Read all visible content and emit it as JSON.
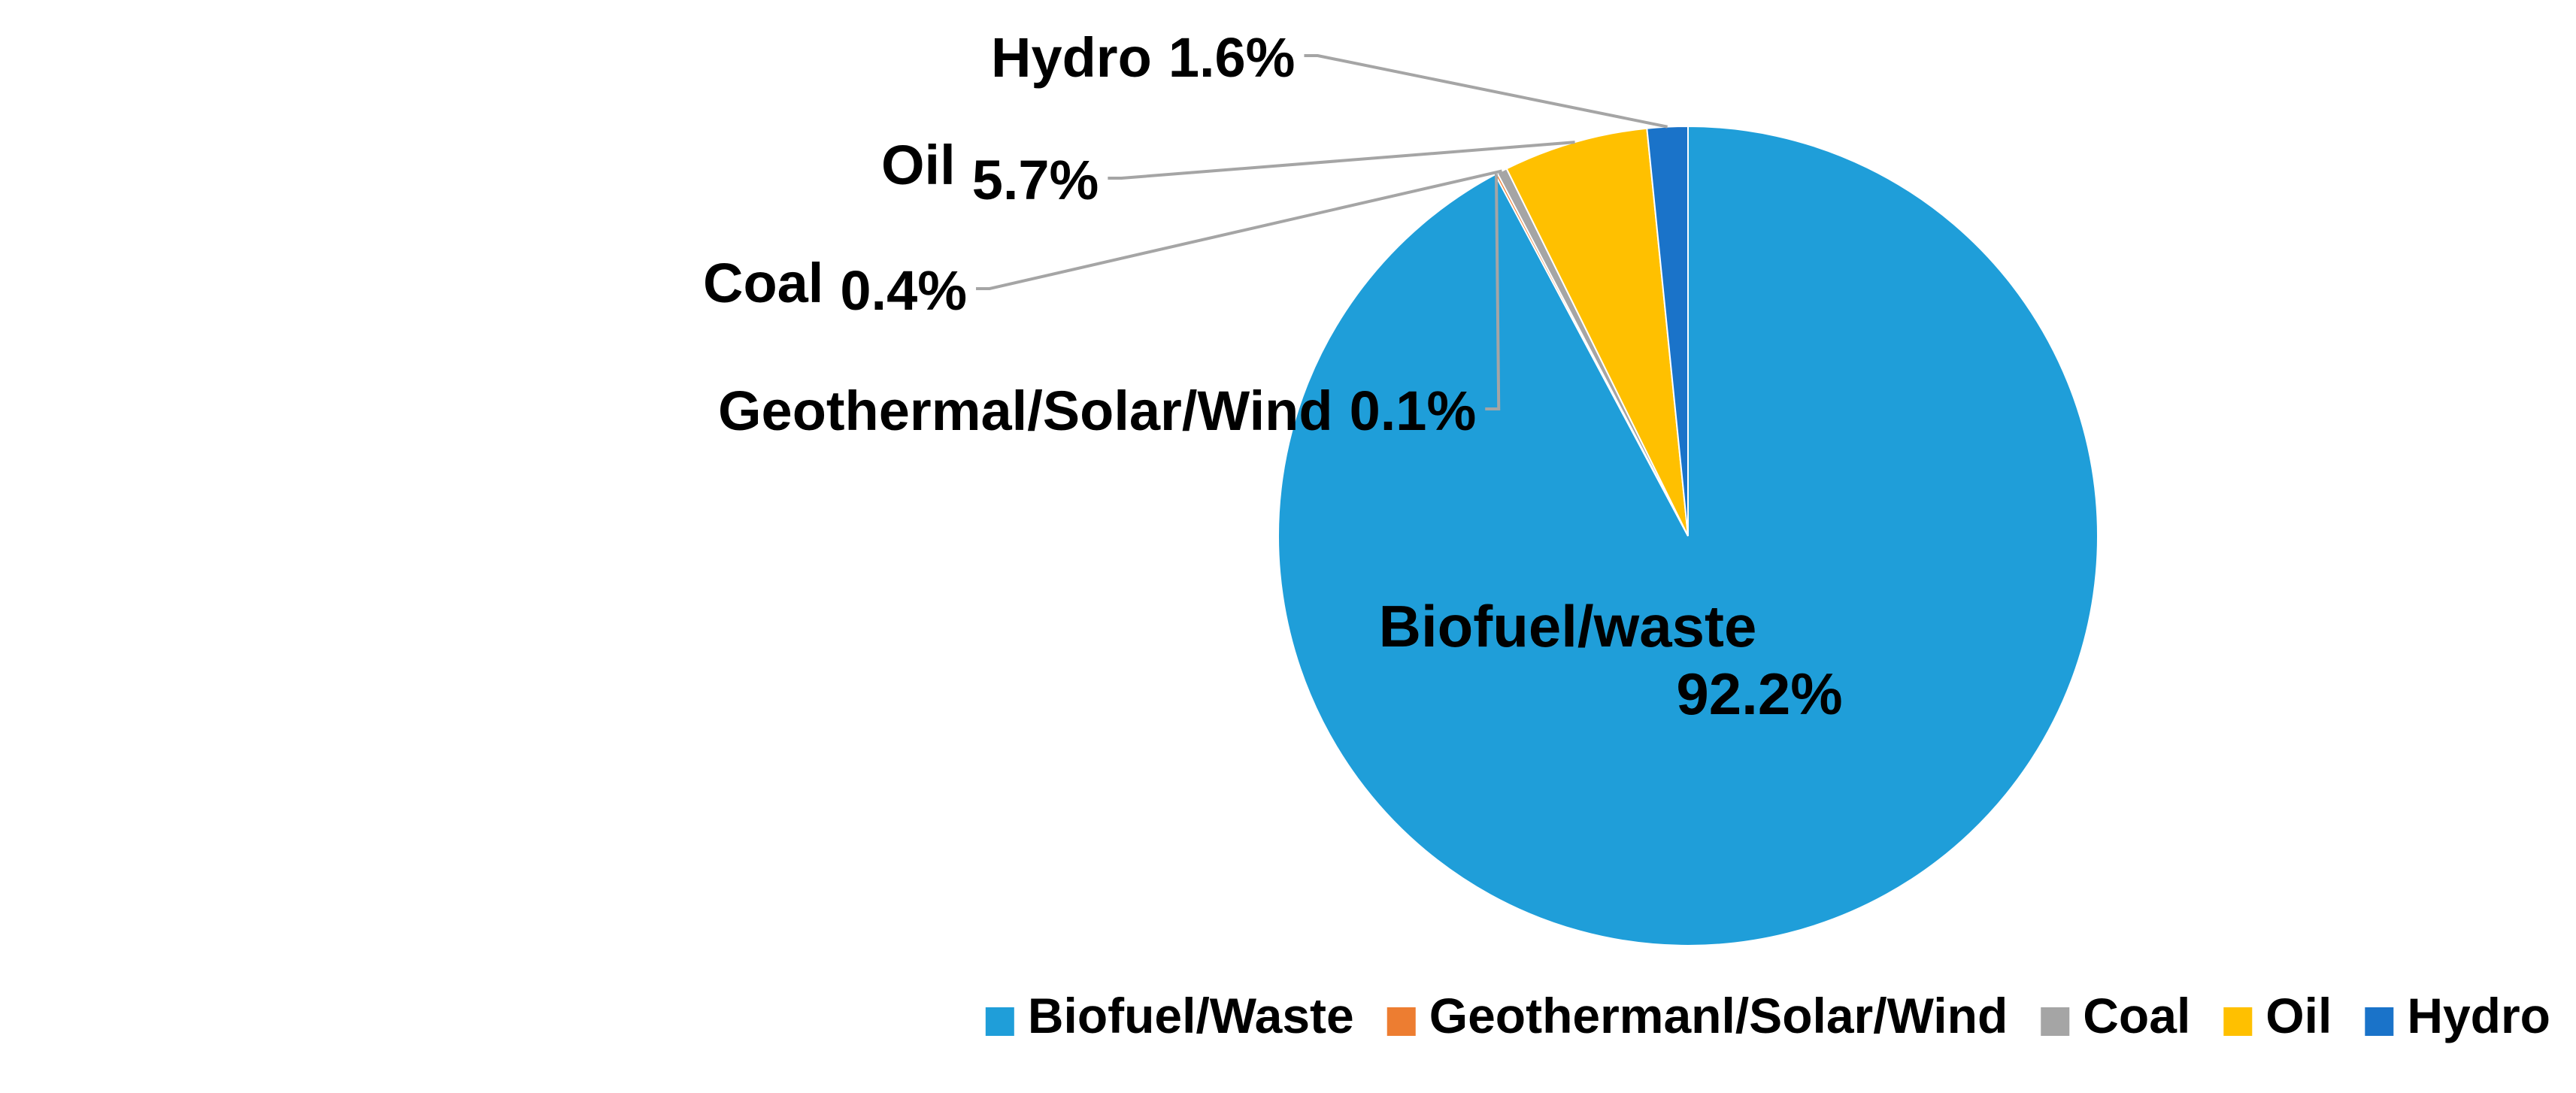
{
  "chart_data": {
    "type": "pie",
    "start_angle_deg": 0,
    "direction": "clockwise",
    "slices": [
      {
        "name": "Biofuel/Waste",
        "value": 92.2,
        "color": "#1f9ed9",
        "label_name": "Biofuel/waste",
        "label_value": "92.2%",
        "label_position": "inside"
      },
      {
        "name": "Geothermanl/Solar/Wind",
        "value": 0.1,
        "color": "#ed7d31",
        "label_name": "Geothermal/Solar/Wind",
        "label_value": "0.1%",
        "label_position": "outside"
      },
      {
        "name": "Coal",
        "value": 0.4,
        "color": "#a5a5a5",
        "label_name": "Coal",
        "label_value": "0.4%",
        "label_position": "outside"
      },
      {
        "name": "Oil",
        "value": 5.7,
        "color": "#ffc000",
        "label_name": "Oil",
        "label_value": "5.7%",
        "label_position": "outside"
      },
      {
        "name": "Hydro",
        "value": 1.6,
        "color": "#1a73c9",
        "label_name": "Hydro",
        "label_value": "1.6%",
        "label_position": "outside"
      }
    ],
    "legend": {
      "position": "bottom-right",
      "entries": [
        {
          "label": "Biofuel/Waste",
          "color": "#1f9ed9"
        },
        {
          "label": "Geothermanl/Solar/Wind",
          "color": "#ed7d31"
        },
        {
          "label": "Coal",
          "color": "#a5a5a5"
        },
        {
          "label": "Oil",
          "color": "#ffc000"
        },
        {
          "label": "Hydro",
          "color": "#1a73c9"
        }
      ]
    },
    "leader_line_color": "#a5a5a5"
  }
}
